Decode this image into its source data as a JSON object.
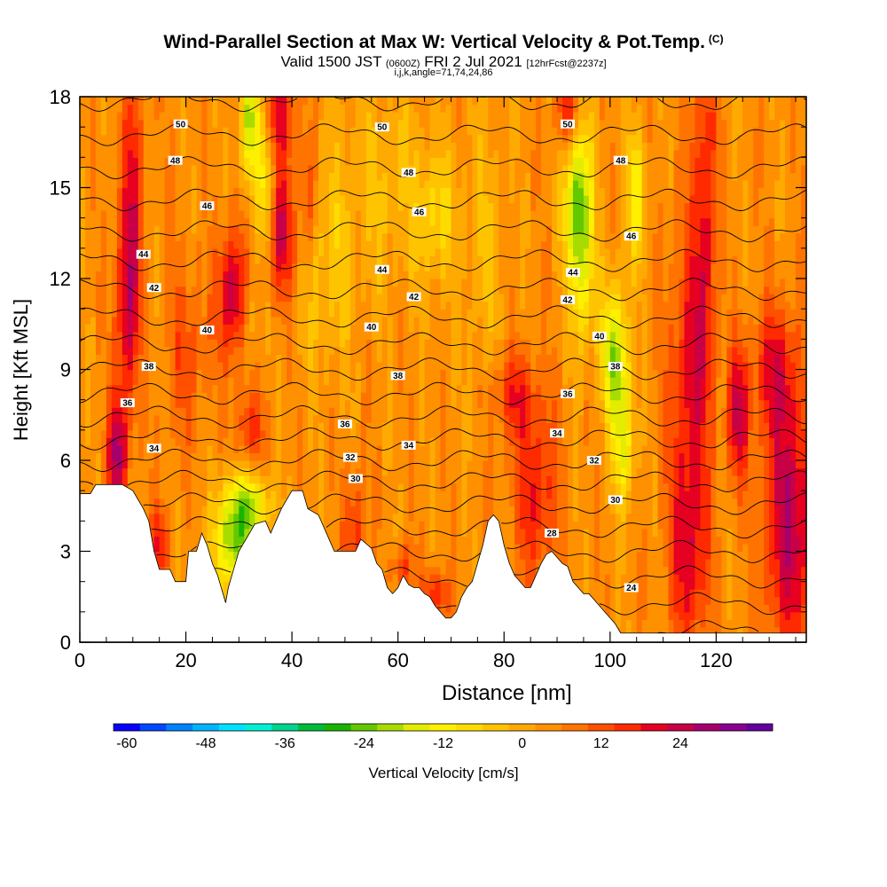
{
  "header": {
    "title": "Wind-Parallel Section at Max W: Vertical Velocity & Pot.Temp.",
    "copyright": "(C)",
    "valid_main": "Valid 1500 JST",
    "valid_z": "(0600Z)",
    "valid_date": "FRI 2 Jul 2021",
    "valid_fcst": "[12hrFcst@2237z]",
    "params": "i,j,k,angle=71,74,24,86"
  },
  "chart_data": {
    "type": "heatmap",
    "title": "Wind-Parallel Section at Max W: Vertical Velocity & Pot.Temp.",
    "xlabel": "Distance [nm]",
    "ylabel": "Height [Kft MSL]",
    "xlim": [
      0,
      137
    ],
    "ylim": [
      0,
      18
    ],
    "x_ticks": [
      0,
      20,
      40,
      60,
      80,
      100,
      120
    ],
    "y_ticks": [
      0,
      3,
      6,
      9,
      12,
      15,
      18
    ],
    "grid": false,
    "colorbar": {
      "label": "Vertical Velocity [cm/s]",
      "min": -62,
      "step": 4,
      "ticks": [
        -60,
        -48,
        -36,
        -24,
        -12,
        0,
        12,
        24
      ],
      "colors": [
        "#0a00ff",
        "#0048ff",
        "#0082ff",
        "#00b4ff",
        "#00e1ff",
        "#00f0d4",
        "#00d48c",
        "#00bc3c",
        "#18b400",
        "#62c800",
        "#a8dc00",
        "#e4ec00",
        "#fff000",
        "#ffdc00",
        "#ffc400",
        "#ffaa00",
        "#ff9000",
        "#ff7400",
        "#ff5000",
        "#ff2a00",
        "#e60021",
        "#c80045",
        "#a6006c",
        "#8a0090",
        "#64009e"
      ]
    },
    "terrain_kft": [
      [
        0,
        4.9
      ],
      [
        2,
        4.9
      ],
      [
        3,
        5.2
      ],
      [
        8,
        5.2
      ],
      [
        10,
        5.0
      ],
      [
        12,
        4.4
      ],
      [
        13,
        4.0
      ],
      [
        14,
        3.0
      ],
      [
        15,
        2.4
      ],
      [
        17,
        2.4
      ],
      [
        18,
        2.0
      ],
      [
        20,
        2.0
      ],
      [
        20.5,
        3.0
      ],
      [
        22,
        3.0
      ],
      [
        23,
        3.6
      ],
      [
        24,
        3.2
      ],
      [
        25,
        2.6
      ],
      [
        26,
        2.2
      ],
      [
        27,
        1.6
      ],
      [
        27.5,
        1.3
      ],
      [
        28,
        1.8
      ],
      [
        30,
        3.0
      ],
      [
        32,
        3.6
      ],
      [
        33,
        3.9
      ],
      [
        35,
        4.0
      ],
      [
        36,
        3.6
      ],
      [
        37,
        4.0
      ],
      [
        38,
        4.4
      ],
      [
        39,
        4.7
      ],
      [
        40,
        5.0
      ],
      [
        42,
        5.0
      ],
      [
        43,
        4.4
      ],
      [
        45,
        4.2
      ],
      [
        47,
        3.4
      ],
      [
        48,
        3.0
      ],
      [
        50,
        3.0
      ],
      [
        52,
        3.0
      ],
      [
        53,
        3.4
      ],
      [
        55,
        3.1
      ],
      [
        56,
        2.6
      ],
      [
        57,
        2.4
      ],
      [
        58,
        1.8
      ],
      [
        59,
        1.6
      ],
      [
        60,
        1.8
      ],
      [
        61,
        2.2
      ],
      [
        62,
        1.9
      ],
      [
        63,
        1.8
      ],
      [
        64,
        1.8
      ],
      [
        65,
        1.6
      ],
      [
        66,
        1.5
      ],
      [
        67,
        1.2
      ],
      [
        68,
        1.0
      ],
      [
        69,
        0.8
      ],
      [
        70,
        0.8
      ],
      [
        71,
        1.0
      ],
      [
        72,
        1.5
      ],
      [
        73,
        1.8
      ],
      [
        74,
        2.0
      ],
      [
        75,
        2.6
      ],
      [
        76,
        3.2
      ],
      [
        77,
        4.0
      ],
      [
        78,
        4.2
      ],
      [
        79,
        4.0
      ],
      [
        80,
        3.2
      ],
      [
        81,
        2.6
      ],
      [
        82,
        2.2
      ],
      [
        83,
        2.0
      ],
      [
        84,
        1.8
      ],
      [
        85,
        1.8
      ],
      [
        86,
        2.2
      ],
      [
        87,
        2.6
      ],
      [
        88,
        2.9
      ],
      [
        89,
        3.0
      ],
      [
        90,
        2.8
      ],
      [
        91,
        2.6
      ],
      [
        92,
        2.5
      ],
      [
        93,
        2.0
      ],
      [
        94,
        1.8
      ],
      [
        95,
        1.6
      ],
      [
        96,
        1.6
      ],
      [
        97,
        1.4
      ],
      [
        98,
        1.2
      ],
      [
        99,
        1.0
      ],
      [
        100,
        0.8
      ],
      [
        101,
        0.6
      ],
      [
        102,
        0.3
      ],
      [
        137,
        0.3
      ]
    ],
    "theta_levels": [
      22,
      23,
      24,
      25,
      26,
      27,
      28,
      29,
      30,
      31,
      32,
      33,
      34,
      35,
      36,
      37,
      38,
      39,
      40,
      41,
      42,
      43,
      44,
      45,
      46,
      47,
      48,
      49,
      50,
      51,
      52
    ],
    "theta_labels": [
      {
        "text": "50",
        "x": 19,
        "y": 17.1
      },
      {
        "text": "50",
        "x": 57,
        "y": 17.0
      },
      {
        "text": "50",
        "x": 92,
        "y": 17.1
      },
      {
        "text": "48",
        "x": 18,
        "y": 15.9
      },
      {
        "text": "48",
        "x": 62,
        "y": 15.5
      },
      {
        "text": "48",
        "x": 102,
        "y": 15.9
      },
      {
        "text": "46",
        "x": 24,
        "y": 14.4
      },
      {
        "text": "46",
        "x": 64,
        "y": 14.2
      },
      {
        "text": "46",
        "x": 104,
        "y": 13.4
      },
      {
        "text": "44",
        "x": 12,
        "y": 12.8
      },
      {
        "text": "44",
        "x": 57,
        "y": 12.3
      },
      {
        "text": "44",
        "x": 93,
        "y": 12.2
      },
      {
        "text": "42",
        "x": 14,
        "y": 11.7
      },
      {
        "text": "42",
        "x": 63,
        "y": 11.4
      },
      {
        "text": "42",
        "x": 92,
        "y": 11.3
      },
      {
        "text": "40",
        "x": 24,
        "y": 10.3
      },
      {
        "text": "40",
        "x": 55,
        "y": 10.4
      },
      {
        "text": "40",
        "x": 98,
        "y": 10.1
      },
      {
        "text": "38",
        "x": 13,
        "y": 9.1
      },
      {
        "text": "38",
        "x": 60,
        "y": 8.8
      },
      {
        "text": "38",
        "x": 101,
        "y": 9.1
      },
      {
        "text": "36",
        "x": 9,
        "y": 7.9
      },
      {
        "text": "36",
        "x": 50,
        "y": 7.2
      },
      {
        "text": "36",
        "x": 92,
        "y": 8.2
      },
      {
        "text": "34",
        "x": 14,
        "y": 6.4
      },
      {
        "text": "34",
        "x": 62,
        "y": 6.5
      },
      {
        "text": "34",
        "x": 90,
        "y": 6.9
      },
      {
        "text": "32",
        "x": 51,
        "y": 6.1
      },
      {
        "text": "32",
        "x": 97,
        "y": 6.0
      },
      {
        "text": "30",
        "x": 52,
        "y": 5.4
      },
      {
        "text": "30",
        "x": 101,
        "y": 4.7
      },
      {
        "text": "28",
        "x": 89,
        "y": 3.6
      },
      {
        "text": "24",
        "x": 104,
        "y": 1.8
      }
    ],
    "features": [
      {
        "w": 22,
        "x": 7,
        "y": 6.2,
        "sx": 1.3,
        "sy": 1.3
      },
      {
        "w": 20,
        "x": 9,
        "y": 11,
        "sx": 1.5,
        "sy": 2.5
      },
      {
        "w": 12,
        "x": 10,
        "y": 15.5,
        "sx": 1.5,
        "sy": 2.5
      },
      {
        "w": 14,
        "x": 15,
        "y": 3.2,
        "sx": 1.2,
        "sy": 0.9
      },
      {
        "w": 8,
        "x": 20,
        "y": 9.5,
        "sx": 3,
        "sy": 2
      },
      {
        "w": 22,
        "x": 29,
        "y": 11.5,
        "sx": 2,
        "sy": 1.5
      },
      {
        "w": -8,
        "x": 32,
        "y": 11,
        "sx": 1.5,
        "sy": 1.5
      },
      {
        "w": -24,
        "x": 32,
        "y": 17.2,
        "sx": 1.2,
        "sy": 1.5
      },
      {
        "w": -16,
        "x": 35,
        "y": 15,
        "sx": 1.2,
        "sy": 1.5
      },
      {
        "w": -28,
        "x": 29,
        "y": 3.5,
        "sx": 2.4,
        "sy": 1.3
      },
      {
        "w": -18,
        "x": 33,
        "y": 4.5,
        "sx": 2.2,
        "sy": 0.8
      },
      {
        "w": 20,
        "x": 38,
        "y": 13.5,
        "sx": 2,
        "sy": 1.5
      },
      {
        "w": 16,
        "x": 38,
        "y": 17.5,
        "sx": 1.8,
        "sy": 1.2
      },
      {
        "w": 12,
        "x": 32,
        "y": 7,
        "sx": 2,
        "sy": 1
      },
      {
        "w": 12,
        "x": 43,
        "y": 14.5,
        "sx": 1,
        "sy": 1.5
      },
      {
        "w": -8,
        "x": 46,
        "y": 12.5,
        "sx": 4,
        "sy": 2.5
      },
      {
        "w": 12,
        "x": 52,
        "y": 3.5,
        "sx": 1.5,
        "sy": 1.5
      },
      {
        "w": -6,
        "x": 58,
        "y": 15,
        "sx": 6,
        "sy": 2.5
      },
      {
        "w": -10,
        "x": 67,
        "y": 14,
        "sx": 2.5,
        "sy": 1.5
      },
      {
        "w": 14,
        "x": 67,
        "y": 1.5,
        "sx": 2,
        "sy": 0.6
      },
      {
        "w": 12,
        "x": 61,
        "y": 2.5,
        "sx": 1.2,
        "sy": 0.5
      },
      {
        "w": -6,
        "x": 76,
        "y": 13,
        "sx": 3,
        "sy": 3
      },
      {
        "w": 14,
        "x": 86,
        "y": 5,
        "sx": 3,
        "sy": 2
      },
      {
        "w": 12,
        "x": 82,
        "y": 8.2,
        "sx": 3,
        "sy": 1
      },
      {
        "w": -30,
        "x": 94,
        "y": 14.5,
        "sx": 1.8,
        "sy": 1.8
      },
      {
        "w": -12,
        "x": 95,
        "y": 11.5,
        "sx": 1.5,
        "sy": 1.5
      },
      {
        "w": -18,
        "x": 102,
        "y": 8.5,
        "sx": 1.4,
        "sy": 2.2
      },
      {
        "w": -16,
        "x": 100,
        "y": 9.5,
        "sx": 1.4,
        "sy": 1.5
      },
      {
        "w": -16,
        "x": 105,
        "y": 14.8,
        "sx": 1.3,
        "sy": 1.5
      },
      {
        "w": -10,
        "x": 103,
        "y": 6.2,
        "sx": 1.2,
        "sy": 1.2
      },
      {
        "w": 14,
        "x": 92,
        "y": 17.5,
        "sx": 1.5,
        "sy": 1
      },
      {
        "w": 16,
        "x": 115,
        "y": 8,
        "sx": 2.6,
        "sy": 4
      },
      {
        "w": 12,
        "x": 115,
        "y": 2.5,
        "sx": 2.5,
        "sy": 2
      },
      {
        "w": 20,
        "x": 124,
        "y": 7.5,
        "sx": 1.4,
        "sy": 1.5
      },
      {
        "w": 22,
        "x": 134,
        "y": 4,
        "sx": 3.5,
        "sy": 3
      },
      {
        "w": 14,
        "x": 131,
        "y": 9,
        "sx": 3,
        "sy": 1.5
      },
      {
        "w": 12,
        "x": 118,
        "y": 16.5,
        "sx": 1.5,
        "sy": 2.5
      },
      {
        "w": 10,
        "x": 118,
        "y": 11.5,
        "sx": 1.5,
        "sy": 2.5
      }
    ]
  }
}
